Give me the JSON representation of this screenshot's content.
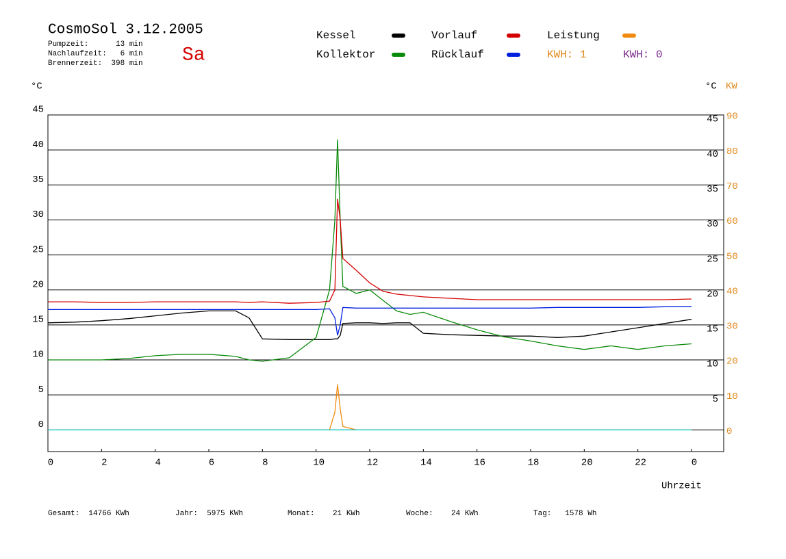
{
  "chart_data": {
    "type": "line",
    "title": "CosmoSol 3.12.2005",
    "day": "Sa",
    "info": [
      "Pumpzeit:      13 min",
      "Nachlaufzeit:   6 min",
      "Brennerzeit:  398 min"
    ],
    "kwh_labels": [
      {
        "text": "KWH: 1",
        "color": "#e08a1e"
      },
      {
        "text": "KWH: 0",
        "color": "#7a2a8a"
      }
    ],
    "y_label": "°C",
    "y2_label_c": "°C",
    "y2_label": "KW",
    "x_label": "Uhrzeit",
    "footer": [
      "Gesamt:  14766 KWh",
      "Jahr:  5975 KWh",
      "Monat:    21 KWh",
      "Woche:    24 KWh",
      "Tag:   1578 Wh"
    ],
    "x": [
      0,
      1,
      2,
      3,
      4,
      5,
      6,
      7,
      7.5,
      8,
      9,
      10,
      10.5,
      10.7,
      10.8,
      10.9,
      11,
      11.5,
      12,
      12.5,
      13,
      13.5,
      14,
      15,
      16,
      17,
      18,
      19,
      20,
      21,
      22,
      23,
      24
    ],
    "series": [
      {
        "name": "Kessel",
        "color": "#000000",
        "values": [
          15.3,
          15.4,
          15.6,
          15.9,
          16.3,
          16.7,
          17.0,
          17.0,
          16.0,
          13.0,
          12.9,
          12.9,
          12.9,
          13.0,
          13.0,
          13.5,
          15.2,
          15.3,
          15.3,
          15.2,
          15.3,
          15.3,
          13.8,
          13.6,
          13.5,
          13.4,
          13.4,
          13.2,
          13.4,
          14.0,
          14.6,
          15.2,
          15.8
        ]
      },
      {
        "name": "Kollektor",
        "color": "#0a8a0a",
        "values": [
          10.0,
          10.0,
          10.0,
          10.2,
          10.6,
          10.8,
          10.8,
          10.5,
          10.0,
          9.8,
          10.3,
          13.2,
          20.0,
          30.0,
          41.5,
          30.0,
          20.5,
          19.5,
          20.0,
          18.5,
          17.0,
          16.5,
          16.8,
          15.5,
          14.3,
          13.3,
          12.7,
          12.0,
          11.5,
          12.0,
          11.5,
          12.0,
          12.3
        ]
      },
      {
        "name": "Vorlauf",
        "color": "#d40000",
        "values": [
          18.3,
          18.3,
          18.2,
          18.2,
          18.3,
          18.3,
          18.3,
          18.3,
          18.2,
          18.3,
          18.1,
          18.2,
          18.4,
          20.0,
          33.0,
          30.0,
          24.5,
          22.8,
          21.0,
          19.8,
          19.4,
          19.2,
          19.0,
          18.8,
          18.6,
          18.6,
          18.6,
          18.6,
          18.6,
          18.6,
          18.6,
          18.6,
          18.7
        ]
      },
      {
        "name": "Rücklauf",
        "color": "#0020e0",
        "values": [
          17.2,
          17.2,
          17.2,
          17.2,
          17.2,
          17.2,
          17.2,
          17.2,
          17.2,
          17.2,
          17.2,
          17.2,
          17.3,
          16.0,
          13.5,
          15.0,
          17.5,
          17.4,
          17.4,
          17.4,
          17.4,
          17.4,
          17.4,
          17.4,
          17.4,
          17.4,
          17.4,
          17.5,
          17.5,
          17.5,
          17.5,
          17.6,
          17.6
        ]
      },
      {
        "name": "Leistung",
        "color": "#f08a10",
        "axis": "y2",
        "values": [
          0,
          0,
          0,
          0,
          0,
          0,
          0,
          0,
          0,
          0,
          0,
          0,
          0,
          5,
          13,
          6,
          1,
          0,
          0,
          0,
          0,
          0,
          0,
          0,
          0,
          0,
          0,
          0,
          0,
          0,
          0,
          0,
          0
        ]
      },
      {
        "color": "#20d0d0",
        "values": [
          0,
          0,
          0,
          0,
          0,
          0,
          0,
          0,
          0,
          0,
          0,
          0,
          0,
          0,
          0,
          0,
          0,
          0,
          0,
          0,
          0,
          0,
          0,
          0,
          0,
          0,
          0,
          0,
          0,
          0,
          0,
          0,
          0
        ]
      }
    ],
    "xlim": [
      0,
      25.2
    ],
    "xticks": [
      0,
      2,
      4,
      6,
      8,
      10,
      12,
      14,
      16,
      18,
      20,
      22,
      {
        "value": 24,
        "label": "0"
      }
    ],
    "ylim": [
      -3.1,
      45
    ],
    "yticks": [
      0,
      5,
      10,
      15,
      20,
      25,
      30,
      35,
      40,
      45
    ],
    "y_right_ticks": [
      5,
      10,
      15,
      20,
      25,
      30,
      35,
      40,
      45
    ],
    "y2lim": [
      -6.2,
      90
    ],
    "y2ticks": [
      0,
      10,
      20,
      30,
      40,
      50,
      60,
      70,
      80,
      90
    ],
    "grid": true
  }
}
